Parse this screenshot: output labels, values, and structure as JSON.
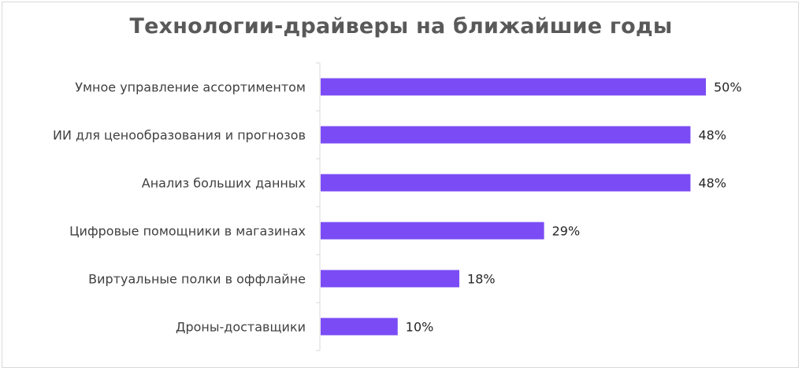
{
  "chart_data": {
    "type": "bar",
    "orientation": "horizontal",
    "title": "Технологии-драйверы на ближайшие годы",
    "categories": [
      "Умное управление ассортиментом",
      "ИИ для ценообразования и прогнозов",
      "Анализ больших данных",
      "Цифровые помощники в магазинах",
      "Виртуальные полки в оффлайне",
      "Дроны-доставщики"
    ],
    "values": [
      50,
      48,
      48,
      29,
      18,
      10
    ],
    "value_labels": [
      "50%",
      "48%",
      "48%",
      "29%",
      "18%",
      "10%"
    ],
    "unit": "%",
    "xlim": [
      0,
      50
    ],
    "bar_color": "#7b4cf5",
    "grid": false,
    "legend": "none"
  }
}
